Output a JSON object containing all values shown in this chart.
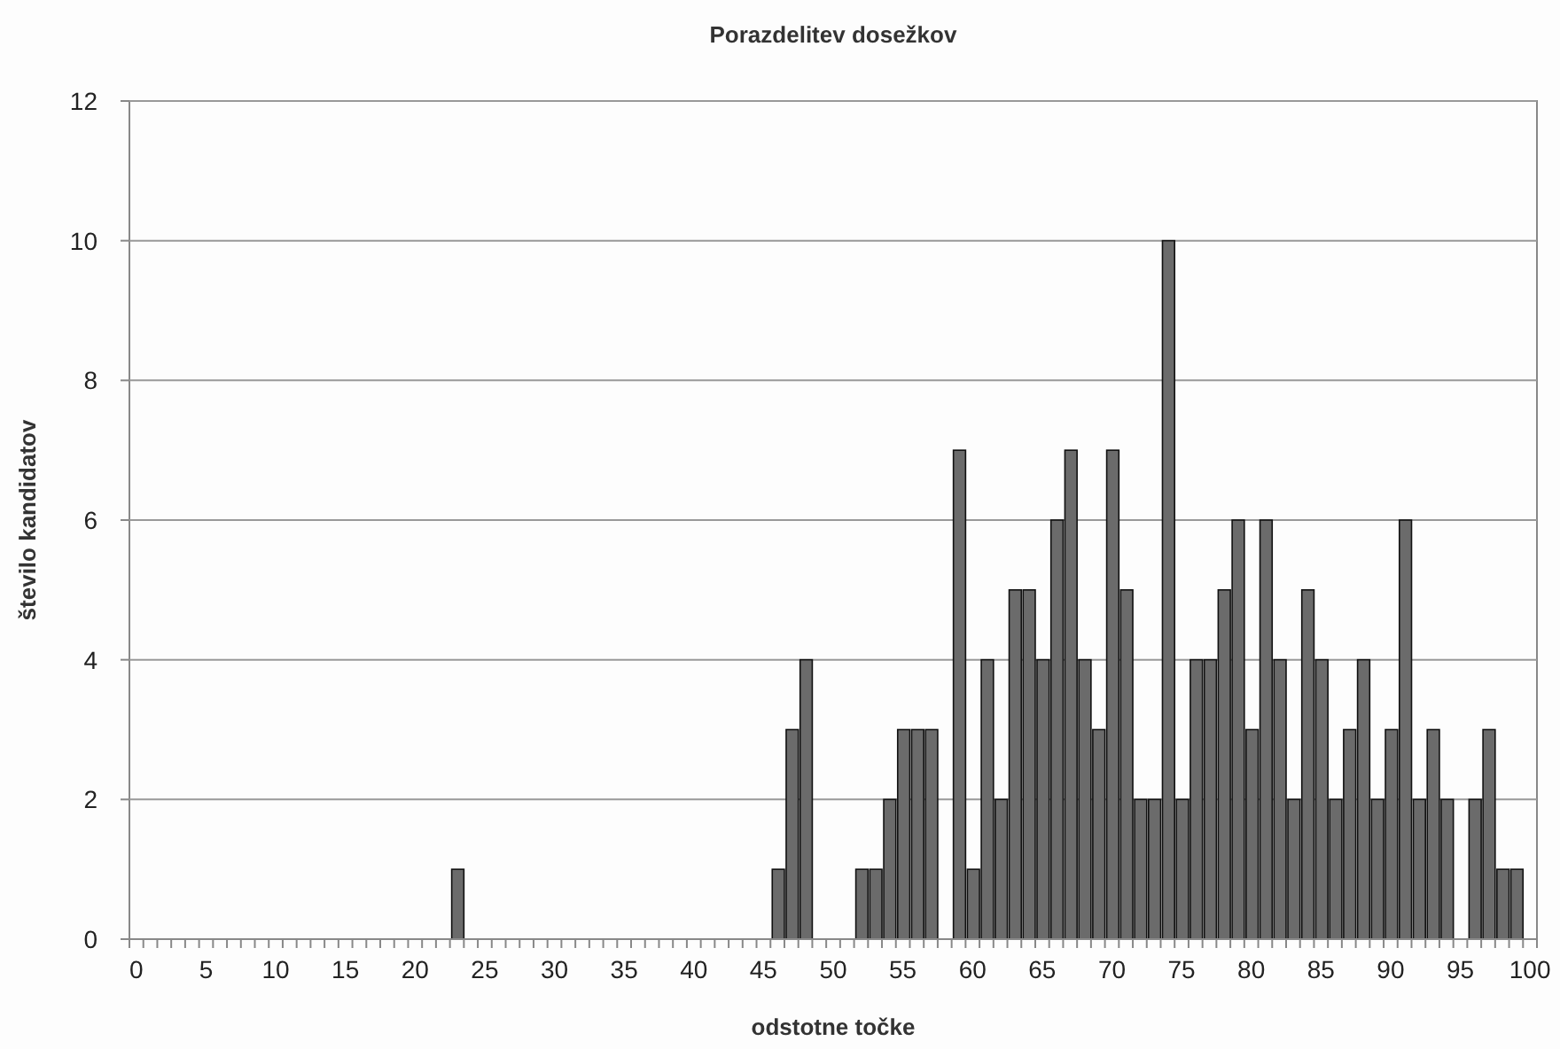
{
  "chart_data": {
    "type": "bar",
    "title": "Porazdelitev dosežkov",
    "xlabel": "odstotne točke",
    "ylabel": "število kandidatov",
    "categories": [
      "0",
      null,
      null,
      null,
      null,
      "5",
      null,
      null,
      null,
      null,
      "10",
      null,
      null,
      null,
      null,
      "15",
      null,
      null,
      null,
      null,
      "20",
      null,
      null,
      null,
      null,
      "25",
      null,
      null,
      null,
      null,
      "30",
      null,
      null,
      null,
      null,
      "35",
      null,
      null,
      null,
      null,
      "40",
      null,
      null,
      null,
      null,
      "45",
      null,
      null,
      null,
      null,
      "50",
      null,
      null,
      null,
      null,
      "55",
      null,
      null,
      null,
      null,
      "60",
      null,
      null,
      null,
      null,
      "65",
      null,
      null,
      null,
      null,
      "70",
      null,
      null,
      null,
      null,
      "75",
      null,
      null,
      null,
      null,
      "80",
      null,
      null,
      null,
      null,
      "85",
      null,
      null,
      null,
      null,
      "90",
      null,
      null,
      null,
      null,
      "95",
      null,
      null,
      null,
      null,
      "100"
    ],
    "values": [
      0,
      0,
      0,
      0,
      0,
      0,
      0,
      0,
      0,
      0,
      0,
      0,
      0,
      0,
      0,
      0,
      0,
      0,
      0,
      0,
      0,
      0,
      0,
      1,
      0,
      0,
      0,
      0,
      0,
      0,
      0,
      0,
      0,
      0,
      0,
      0,
      0,
      0,
      0,
      0,
      0,
      0,
      0,
      0,
      0,
      0,
      1,
      3,
      4,
      0,
      0,
      0,
      1,
      1,
      2,
      3,
      3,
      3,
      0,
      7,
      1,
      4,
      2,
      5,
      5,
      4,
      6,
      7,
      4,
      3,
      7,
      5,
      2,
      2,
      10,
      2,
      4,
      4,
      5,
      6,
      3,
      6,
      4,
      2,
      5,
      4,
      2,
      3,
      4,
      2,
      3,
      6,
      2,
      3,
      2,
      0,
      2,
      3,
      1,
      1,
      0
    ],
    "color": "#6b6b6b",
    "ylim": [
      0,
      12
    ],
    "yticks": [
      0,
      2,
      4,
      6,
      8,
      10,
      12
    ],
    "grid": "y"
  }
}
